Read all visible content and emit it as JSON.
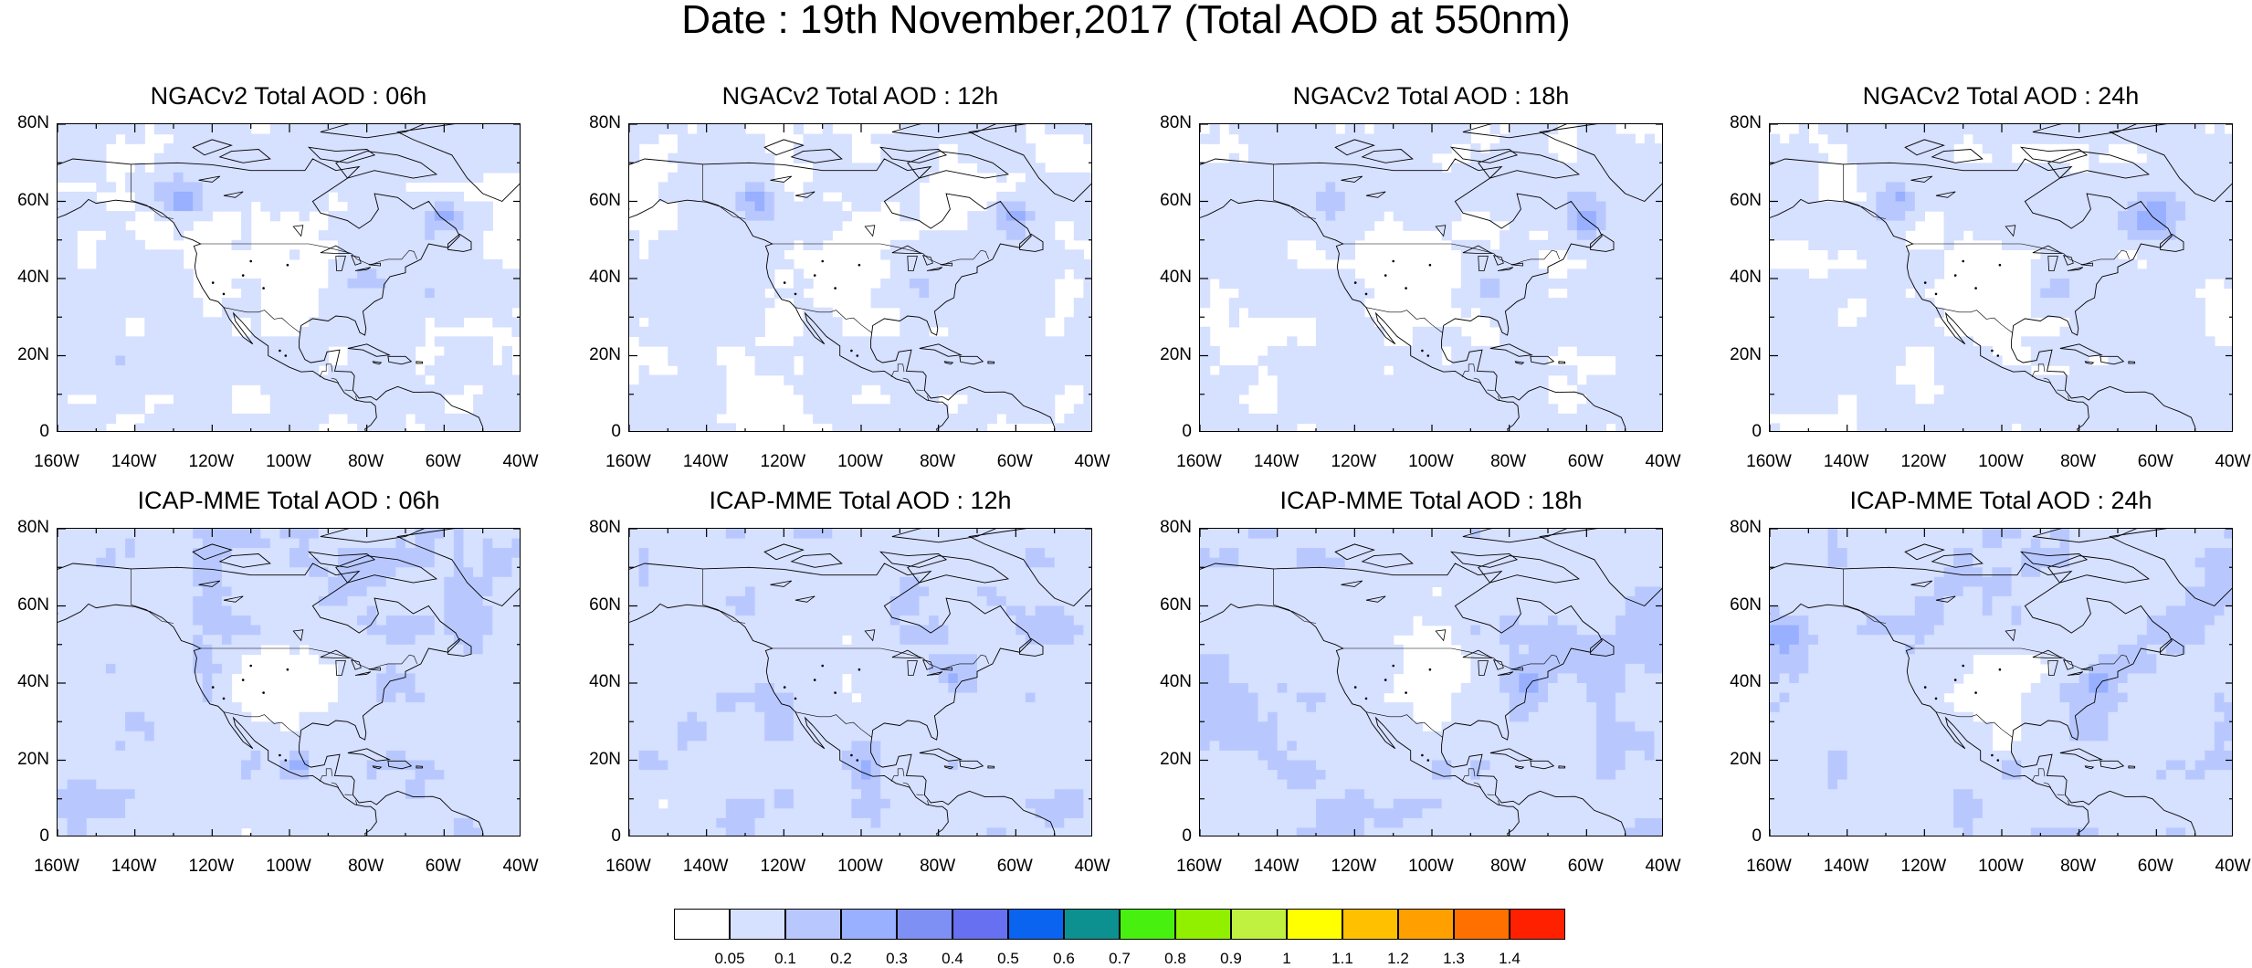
{
  "title": "Date : 19th November,2017 (Total AOD at 550nm)",
  "panels": [
    {
      "title": "NGACv2 Total AOD : 06h"
    },
    {
      "title": "NGACv2 Total AOD : 12h"
    },
    {
      "title": "NGACv2 Total AOD : 18h"
    },
    {
      "title": "NGACv2 Total AOD : 24h"
    },
    {
      "title": "ICAP-MME Total AOD : 06h"
    },
    {
      "title": "ICAP-MME Total AOD : 12h"
    },
    {
      "title": "ICAP-MME Total AOD : 18h"
    },
    {
      "title": "ICAP-MME Total AOD : 24h"
    }
  ],
  "lat_ticks": [
    "80N",
    "60N",
    "40N",
    "20N",
    "0"
  ],
  "lon_ticks": [
    "160W",
    "140W",
    "120W",
    "100W",
    "80W",
    "60W",
    "40W"
  ],
  "colorbar": {
    "labels": [
      "0.05",
      "0.1",
      "0.2",
      "0.3",
      "0.4",
      "0.5",
      "0.6",
      "0.7",
      "0.8",
      "0.9",
      "1",
      "1.1",
      "1.2",
      "1.3",
      "1.4"
    ],
    "colors": [
      "#ffffff",
      "#d6e0ff",
      "#b8c8ff",
      "#98b0ff",
      "#7e90f4",
      "#6670f0",
      "#0a64f0",
      "#0c9090",
      "#48f010",
      "#90f000",
      "#c0f040",
      "#ffff00",
      "#ffc000",
      "#ffa000",
      "#ff7000",
      "#ff2000"
    ]
  }
}
